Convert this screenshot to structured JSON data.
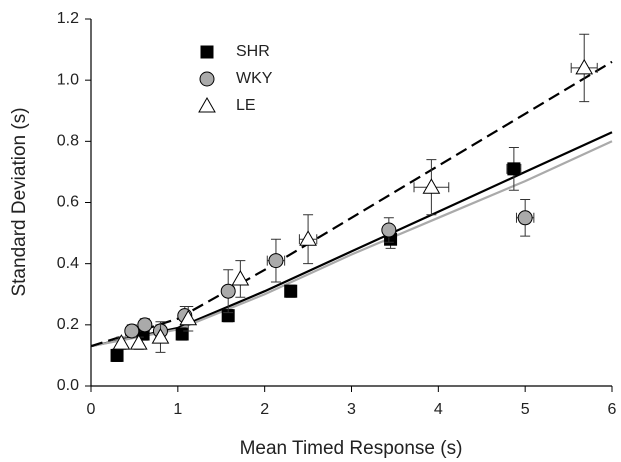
{
  "chart_data": {
    "type": "scatter",
    "xlabel": "Mean Timed Response (s)",
    "ylabel": "Standard Deviation (s)",
    "xlim": [
      0,
      6
    ],
    "ylim": [
      0,
      1.2
    ],
    "xticks": [
      0,
      1,
      2,
      3,
      4,
      5,
      6
    ],
    "yticks": [
      {
        "value": 0,
        "label": "0.0"
      },
      0.2,
      0.4,
      0.6,
      0.8,
      {
        "value": 1,
        "label": "1.0"
      },
      1.2
    ],
    "legend": "upper left",
    "series": [
      {
        "name": "SHR",
        "marker": "square",
        "color": "#000000",
        "x": [
          0.3,
          0.6,
          1.05,
          1.58,
          2.3,
          3.45,
          4.87
        ],
        "values": [
          0.1,
          0.17,
          0.17,
          0.23,
          0.31,
          0.48,
          0.71
        ],
        "yerr": [
          0.02,
          0.02,
          0.02,
          0.02,
          0.02,
          0.03,
          0.07
        ],
        "xerr": [
          null,
          null,
          null,
          null,
          null,
          null,
          0.08
        ]
      },
      {
        "name": "WKY",
        "marker": "circle",
        "color": "#aaaaaa",
        "x": [
          0.47,
          0.62,
          0.8,
          1.08,
          1.58,
          2.13,
          3.43,
          5.0
        ],
        "values": [
          0.18,
          0.2,
          0.18,
          0.23,
          0.31,
          0.41,
          0.51,
          0.55
        ],
        "yerr": [
          0.02,
          0.02,
          0.02,
          0.03,
          0.07,
          0.07,
          0.04,
          0.06
        ],
        "xerr": [
          null,
          null,
          null,
          null,
          null,
          0.1,
          null,
          0.1
        ]
      },
      {
        "name": "LE",
        "marker": "triangle",
        "color": "#ffffff",
        "x": [
          0.35,
          0.55,
          0.8,
          1.12,
          1.72,
          2.5,
          3.92,
          5.68
        ],
        "values": [
          0.14,
          0.14,
          0.16,
          0.22,
          0.35,
          0.48,
          0.65,
          1.04
        ],
        "yerr": [
          0.02,
          0.02,
          0.05,
          0.04,
          0.06,
          0.08,
          0.09,
          0.11
        ],
        "xerr": [
          null,
          null,
          null,
          null,
          null,
          0.1,
          0.2,
          0.15
        ]
      }
    ],
    "fits": [
      {
        "color": "#000000",
        "dash": false,
        "x": [
          0,
          1,
          2,
          3,
          4,
          5,
          6
        ],
        "values": [
          0.13,
          0.19,
          0.31,
          0.44,
          0.57,
          0.7,
          0.83
        ]
      },
      {
        "color": "#aaaaaa",
        "dash": false,
        "x": [
          0,
          1,
          2,
          3,
          4,
          5,
          6
        ],
        "values": [
          0.13,
          0.185,
          0.3,
          0.43,
          0.55,
          0.67,
          0.8
        ]
      },
      {
        "color": "#000000",
        "dash": true,
        "x": [
          0,
          1,
          2,
          3,
          4,
          5,
          6
        ],
        "values": [
          0.13,
          0.22,
          0.38,
          0.55,
          0.72,
          0.89,
          1.06
        ]
      }
    ]
  }
}
